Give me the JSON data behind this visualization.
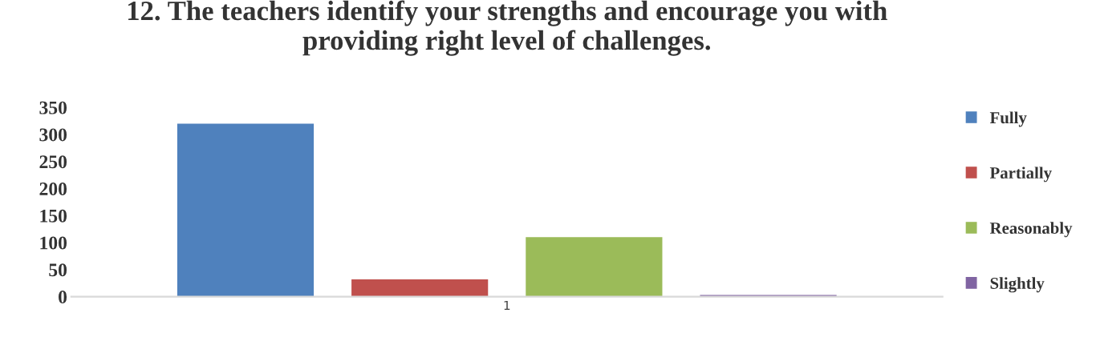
{
  "chart_data": {
    "type": "bar",
    "title": "12. The teachers identify your strengths and encourage you with\nproviding right level of challenges.",
    "categories": [
      "1"
    ],
    "series": [
      {
        "name": "Fully",
        "color": "#4f81bd",
        "values": [
          321
        ]
      },
      {
        "name": "Partially",
        "color": "#c0504d",
        "values": [
          33
        ]
      },
      {
        "name": "Reasonably",
        "color": "#9bbb59",
        "values": [
          111
        ]
      },
      {
        "name": "Slightly",
        "color": "#8064a2",
        "values": [
          4
        ]
      }
    ],
    "ylim": [
      0,
      350
    ],
    "yticks": [
      0,
      50,
      100,
      150,
      200,
      250,
      300,
      350
    ],
    "grid": false,
    "legend": "right"
  }
}
